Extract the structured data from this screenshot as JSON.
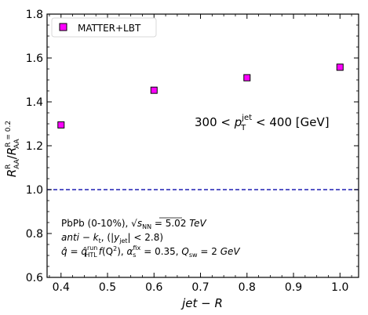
{
  "chart_data": {
    "type": "scatter",
    "x": [
      0.4,
      0.6,
      0.8,
      1.0
    ],
    "series": [
      {
        "name": "MATTER+LBT",
        "values": [
          1.295,
          1.453,
          1.51,
          1.558
        ],
        "marker": "square",
        "color": "#ff00ff",
        "edgecolor": "#000000"
      }
    ],
    "reference_line": {
      "y": 1.0,
      "color": "#1f1fb4",
      "style": "dashed"
    },
    "xlim": [
      0.37,
      1.04
    ],
    "ylim": [
      0.6,
      1.8
    ],
    "xticks": [
      "0.4",
      "0.5",
      "0.6",
      "0.7",
      "0.8",
      "0.9",
      "1.0"
    ],
    "yticks": [
      "0.6",
      "0.8",
      "1.0",
      "1.2",
      "1.4",
      "1.6",
      "1.8"
    ],
    "xlabel": {
      "prefix": "jet",
      "op": " − ",
      "suffix": "R"
    },
    "ylabel": {
      "num": "R",
      "num_sub": "AA",
      "num_sup": "R",
      "sep": "/",
      "den": "R",
      "den_sub": "AA",
      "den_sup": "R = 0.2"
    },
    "legend": {
      "position": "top-left",
      "label": "MATTER+LBT"
    },
    "annotations": {
      "pt_cut": {
        "lo": "300 < ",
        "p": "p",
        "sub": "T",
        "sup": "jet",
        "hi": " < 400 [GeV]"
      },
      "line1": {
        "a": "PbPb (0-10%), ",
        "sqrt": "√",
        "s": "s",
        "sub": "NN",
        "b": " = 5.02 ",
        "unit": "TeV"
      },
      "line2": {
        "a": "anti − k",
        "sub": "t",
        "b": ",  (|",
        "y": "y",
        "ysub": "jet",
        "c": "| < 2.8)"
      },
      "line3": {
        "q": "q̂",
        "eq": " = ",
        "q2": "q̂",
        "sup": "run",
        "sub": "HTL",
        "f": "f",
        "arg": "(Q",
        "sq": "2",
        "close": "),  ",
        "alpha": "α",
        "asup": "fix",
        "asub": "s",
        "aval": " = 0.35,  ",
        "Q": "Q",
        "Qsub": "sw",
        "Qval": " = 2 ",
        "unit": "GeV"
      }
    }
  }
}
